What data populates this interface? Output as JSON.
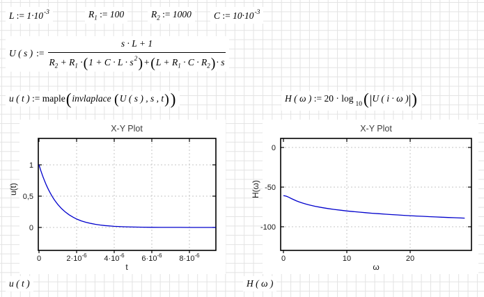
{
  "syntax": {
    "assign": ":=",
    "lparen": "(",
    "rparen": ")",
    "vbar": "|"
  },
  "definitions": {
    "L": {
      "name": "L",
      "base": "1·10",
      "exp": "-3"
    },
    "R1": {
      "name": "R",
      "sub": "1",
      "value": "100"
    },
    "R2": {
      "name": "R",
      "sub": "2",
      "value": "1000"
    },
    "C": {
      "name": "C",
      "base": "10·10",
      "exp": "-3"
    }
  },
  "transfer": {
    "lhs": "U ( s )",
    "num": "s · L + 1",
    "den": {
      "t1": "R",
      "s1": "2",
      "t2": " + R",
      "s2": "1",
      "t3": " ·",
      "inner1": "1 + C · L · s",
      "inner1_exp": "2",
      "t4": "+",
      "inner2a": "L + R",
      "inner2a_sub": "1",
      "inner2b": " · C · R",
      "inner2b_sub": "2",
      "t5": "· s"
    }
  },
  "inverse": {
    "lhs": "u ( t )",
    "fn": "maple",
    "inner_fn": "invlaplace",
    "args": "U ( s ) , s , t"
  },
  "magnitude": {
    "lhs": "H ( ω )",
    "coef": "20 · log",
    "base": "10",
    "arg": "U ( i · ω )"
  },
  "bottom": {
    "left": "u ( t )",
    "right": "H ( ω )"
  },
  "plots": {
    "left": {
      "title": "X-Y Plot",
      "xlabel": "t",
      "ylabel": "u(t)",
      "yticks": [
        "1",
        "0,5",
        "0"
      ],
      "xticks": [
        {
          "m": "0"
        },
        {
          "m": "2·10",
          "e": "-6"
        },
        {
          "m": "4·10",
          "e": "-6"
        },
        {
          "m": "6·10",
          "e": "-6"
        },
        {
          "m": "8·10",
          "e": "-6"
        }
      ]
    },
    "right": {
      "title": "X-Y Plot",
      "xlabel": "ω",
      "ylabel": "H(ω)",
      "yticks": [
        "0",
        "-50",
        "-100"
      ],
      "xticks": [
        "0",
        "10",
        "20"
      ]
    }
  },
  "chart_data": [
    {
      "type": "line",
      "title": "X-Y Plot",
      "xlabel": "t",
      "ylabel": "u(t)",
      "x_unit": "1e-6 s",
      "xlim": [
        0,
        9.4
      ],
      "ylim": [
        -0.37,
        1.42
      ],
      "grid": "dashed",
      "color": "#0000cc",
      "curve": "u(t) = exp(-t/1e-6)",
      "x": [
        0,
        0.1,
        0.2,
        0.3,
        0.4,
        0.5,
        0.6,
        0.7,
        0.8,
        0.9,
        1,
        1.2,
        1.4,
        1.6,
        1.8,
        2,
        2.25,
        2.5,
        2.75,
        3,
        3.25,
        3.5,
        4,
        4.5,
        5,
        5.5,
        6,
        6.5,
        7,
        7.5,
        8,
        8.5,
        9,
        9.4
      ],
      "y": [
        1,
        0.905,
        0.819,
        0.741,
        0.67,
        0.607,
        0.549,
        0.497,
        0.449,
        0.407,
        0.368,
        0.301,
        0.247,
        0.202,
        0.165,
        0.135,
        0.105,
        0.082,
        0.064,
        0.05,
        0.039,
        0.03,
        0.018,
        0.011,
        0.007,
        0.004,
        0.002,
        0.0015,
        0.001,
        0.0006,
        0.0003,
        0.0002,
        0.0001,
        0.0001
      ]
    },
    {
      "type": "line",
      "title": "X-Y Plot",
      "xlabel": "ω",
      "ylabel": "H(ω)",
      "xlim": [
        0,
        29.7
      ],
      "ylim": [
        -129.8,
        11.4
      ],
      "grid": "dashed",
      "color": "#0000cc",
      "curve": "H(ω) = 20·log10(|U(i·ω)|)",
      "x": [
        0,
        0.25,
        0.5,
        0.75,
        1,
        1.25,
        1.5,
        2,
        2.5,
        3,
        3.5,
        4,
        5,
        6,
        7,
        8,
        9,
        10,
        11,
        12,
        13,
        14,
        15,
        16,
        17,
        18,
        19,
        20,
        21,
        22,
        23,
        24,
        25,
        26,
        27,
        28,
        28.6
      ],
      "y": [
        -60.83,
        -61.05,
        -61.64,
        -62.49,
        -63.44,
        -64.43,
        -65.39,
        -67.17,
        -68.73,
        -70.09,
        -71.29,
        -72.36,
        -74.18,
        -75.7,
        -77.01,
        -78.14,
        -79.15,
        -80.05,
        -80.87,
        -81.62,
        -82.31,
        -82.95,
        -83.55,
        -84.1,
        -84.63,
        -85.12,
        -85.59,
        -86.03,
        -86.46,
        -86.86,
        -87.24,
        -87.61,
        -87.97,
        -88.31,
        -88.63,
        -88.95,
        -89.13
      ]
    }
  ]
}
